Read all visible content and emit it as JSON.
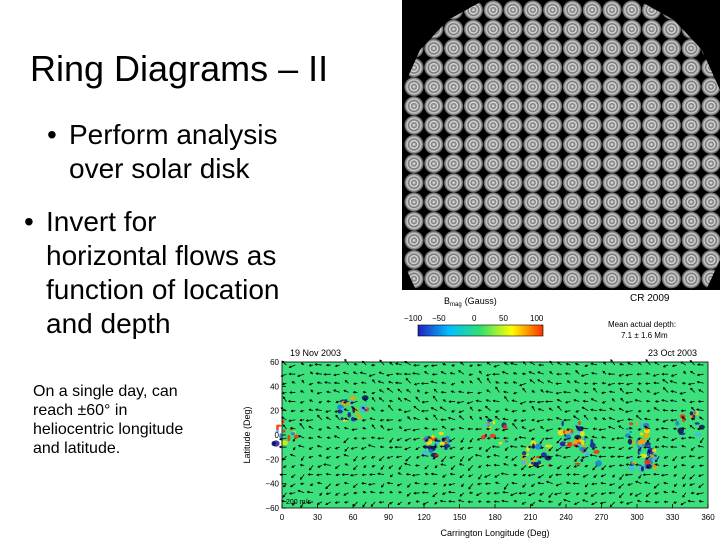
{
  "slide": {
    "title": "Ring Diagrams – II",
    "bullets": [
      {
        "line1": "Perform analysis",
        "line2": "over solar disk"
      },
      {
        "line1": "Invert for",
        "line2": "horizontal flows as",
        "line3": "function of location",
        "line4": "and depth"
      }
    ],
    "note": {
      "line1": "On a single day, can",
      "line2": "reach ±60° in",
      "line3": "heliocentric longitude",
      "line4": "and latitude."
    },
    "bullet_glyph": "•"
  },
  "colorbar": {
    "label": "B",
    "label_sub": "mag",
    "label_unit": "(Gauss)",
    "ticks": [
      "−100",
      "−50",
      "0",
      "50",
      "100"
    ],
    "colors": [
      "#2020c0",
      "#00c0ff",
      "#30e070",
      "#ffff00",
      "#ff3000"
    ]
  },
  "map_info": {
    "rotation": "CR 2009",
    "depth_label": "Mean actual depth:",
    "depth_value": "7.1 ± 1.6 Mm",
    "date_left": "19 Nov 2003",
    "date_right": "23 Oct 2003",
    "speed_key": "200 m/s"
  },
  "chart_data": {
    "type": "heatmap",
    "title": "",
    "xlabel": "Carrington Longitude (Deg)",
    "ylabel": "Latitude (Deg)",
    "x_ticks": [
      "0",
      "30",
      "60",
      "90",
      "120",
      "150",
      "180",
      "210",
      "240",
      "270",
      "300",
      "330",
      "360"
    ],
    "y_ticks": [
      "60",
      "40",
      "20",
      "0",
      "−20",
      "−40",
      "−60"
    ],
    "xlim": [
      0,
      360
    ],
    "ylim": [
      -60,
      60
    ],
    "background_color": "#3ce07c"
  }
}
